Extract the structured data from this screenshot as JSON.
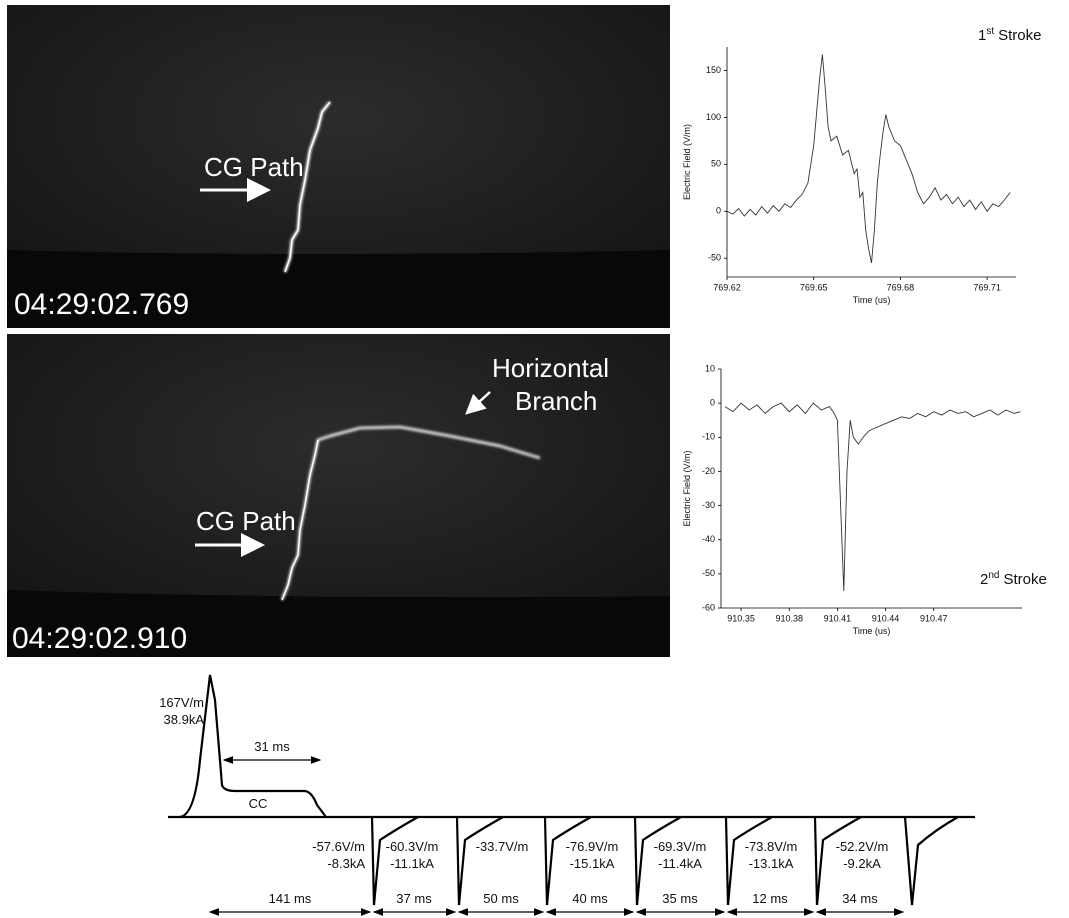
{
  "chart_data": [
    {
      "type": "line",
      "color": "#333333",
      "x_label": "Time (us)",
      "y_label": "Electric Field (V/m)",
      "stroke_label": {
        "ordinal": "1",
        "suffix": "st",
        "word": "Stroke"
      },
      "xlim": [
        769.62,
        769.72
      ],
      "ylim": [
        -70,
        175
      ],
      "xticks": [
        769.62,
        769.65,
        769.68,
        769.71
      ],
      "yticks": [
        -50,
        0,
        50,
        100,
        150
      ],
      "x": [
        769.62,
        769.622,
        769.624,
        769.626,
        769.628,
        769.63,
        769.632,
        769.634,
        769.636,
        769.638,
        769.64,
        769.642,
        769.644,
        769.646,
        769.648,
        769.65,
        769.652,
        769.653,
        769.654,
        769.655,
        769.656,
        769.658,
        769.66,
        769.662,
        769.664,
        769.665,
        769.666,
        769.667,
        769.668,
        769.669,
        769.67,
        769.671,
        769.672,
        769.673,
        769.674,
        769.675,
        769.676,
        769.678,
        769.68,
        769.682,
        769.684,
        769.686,
        769.688,
        769.69,
        769.692,
        769.694,
        769.696,
        769.698,
        769.7,
        769.702,
        769.704,
        769.706,
        769.708,
        769.71,
        769.712,
        769.714,
        769.716,
        769.718
      ],
      "values": [
        0,
        -3,
        3,
        -5,
        2,
        -4,
        5,
        -2,
        6,
        0,
        8,
        4,
        12,
        18,
        30,
        70,
        140,
        167,
        130,
        90,
        75,
        80,
        60,
        65,
        40,
        45,
        15,
        20,
        -20,
        -40,
        -55,
        -20,
        30,
        60,
        85,
        103,
        90,
        75,
        70,
        55,
        40,
        20,
        8,
        15,
        25,
        12,
        18,
        8,
        15,
        5,
        12,
        2,
        10,
        0,
        8,
        5,
        12,
        20
      ]
    },
    {
      "type": "line",
      "color": "#333333",
      "x_label": "Time (us)",
      "y_label": "Electric Field (V/m)",
      "stroke_label": {
        "ordinal": "2",
        "suffix": "nd",
        "word": "Stroke"
      },
      "xlim": [
        910.3375,
        910.525
      ],
      "ylim": [
        -60,
        10
      ],
      "xticks": [
        910.35,
        910.38,
        910.41,
        910.44,
        910.47
      ],
      "yticks": [
        10,
        0,
        -10,
        -20,
        -30,
        -40,
        -50,
        -60
      ],
      "x": [
        910.34,
        910.345,
        910.35,
        910.355,
        910.36,
        910.365,
        910.37,
        910.375,
        910.38,
        910.385,
        910.39,
        910.395,
        910.4,
        910.405,
        910.408,
        910.41,
        910.412,
        910.414,
        910.416,
        910.418,
        910.42,
        910.423,
        910.426,
        910.43,
        910.435,
        910.44,
        910.445,
        910.45,
        910.455,
        910.46,
        910.465,
        910.47,
        910.475,
        910.48,
        910.485,
        910.49,
        910.495,
        910.5,
        910.505,
        910.51,
        910.515,
        910.52,
        910.524
      ],
      "values": [
        -1,
        -2.5,
        0,
        -2,
        -0.5,
        -3,
        -1,
        0,
        -2.5,
        -0.5,
        -3,
        0,
        -2,
        -1,
        -3,
        -5,
        -30,
        -55,
        -20,
        -5,
        -10,
        -12,
        -10,
        -8,
        -7,
        -6,
        -5,
        -4,
        -4.5,
        -3,
        -4,
        -2.5,
        -3.5,
        -2,
        -3,
        -2.5,
        -4,
        -3,
        -2,
        -3.5,
        -2,
        -3,
        -2.5
      ]
    }
  ],
  "photos": [
    {
      "timestamp": "04:29:02.769",
      "path_label": "CG Path"
    },
    {
      "timestamp": "04:29:02.910",
      "path_label": "CG Path",
      "branch_label": [
        "Horizontal",
        "Branch"
      ]
    }
  ],
  "diagram": {
    "first_stroke": {
      "field": "167V/m",
      "current": "38.9kA"
    },
    "cc_duration": "31 ms",
    "cc_label": "CC",
    "strokes": [
      {
        "field": "-57.6V/m",
        "current": "-8.3kA"
      },
      {
        "field": "-60.3V/m",
        "current": "-11.1kA"
      },
      {
        "field": "-33.7V/m"
      },
      {
        "field": "-76.9V/m",
        "current": "-15.1kA"
      },
      {
        "field": "-69.3V/m",
        "current": "-11.4kA"
      },
      {
        "field": "-73.8V/m",
        "current": "-13.1kA"
      },
      {
        "field": "-52.2V/m",
        "current": "-9.2kA"
      }
    ],
    "intervals": [
      "141 ms",
      "37 ms",
      "50 ms",
      "40 ms",
      "35 ms",
      "12 ms",
      "34 ms"
    ]
  }
}
